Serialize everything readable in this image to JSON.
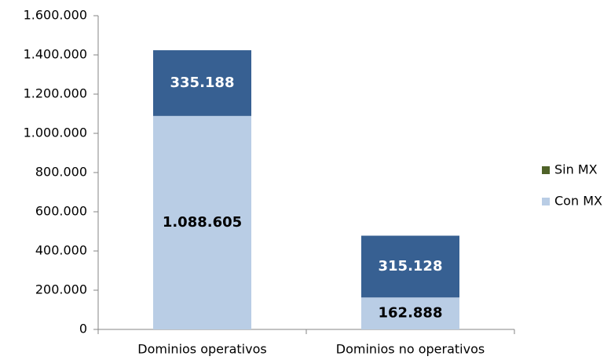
{
  "chart_data": {
    "type": "stacked_bar",
    "categories": [
      "Dominios operativos",
      "Dominios no operativos"
    ],
    "series": [
      {
        "name": "Con MX",
        "color": "#b9cde5",
        "label_color": "#000000",
        "values": [
          1088605,
          162888
        ],
        "value_labels": [
          "1.088.605",
          "162.888"
        ]
      },
      {
        "name": "Sin MX",
        "color": "#376092",
        "legend_color": "#4f6228",
        "label_color": "#ffffff",
        "values": [
          335188,
          315128
        ],
        "value_labels": [
          "335.188",
          "315.128"
        ]
      }
    ],
    "ylim": [
      0,
      1600000
    ],
    "yticks": [
      0,
      {
        "value": 200000,
        "label": "200.000"
      },
      {
        "value": 400000,
        "label": "400.000"
      },
      {
        "value": 600000,
        "label": "600.000"
      },
      {
        "value": 800000,
        "label": "800.000"
      },
      {
        "value": 1000000,
        "label": "1.000.000"
      },
      {
        "value": 1200000,
        "label": "1.200.000"
      },
      {
        "value": 1400000,
        "label": "1.400.000"
      },
      {
        "value": 1600000,
        "label": "1.600.000"
      }
    ],
    "grid": false,
    "legend": "right"
  }
}
